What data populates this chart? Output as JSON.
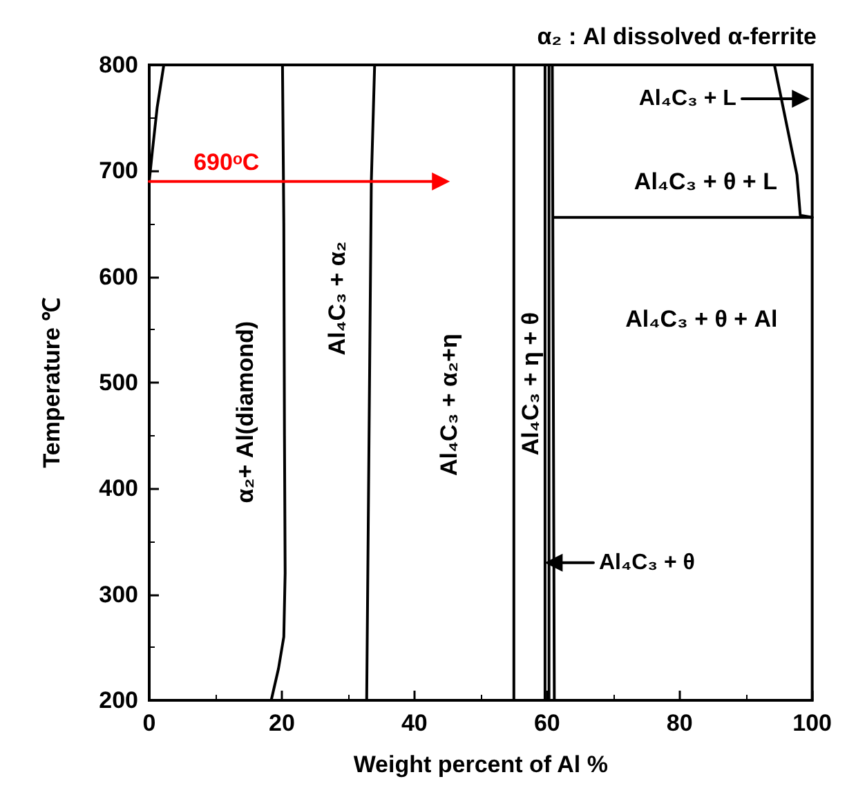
{
  "chart_data": {
    "type": "line",
    "xlabel": "Weight percent of Al %",
    "ylabel": "Temperature ℃",
    "xlim": [
      0,
      100
    ],
    "xticks": [
      0,
      20,
      40,
      60,
      80,
      100
    ],
    "ylim": [
      200,
      800
    ],
    "yticks": [
      200,
      300,
      400,
      500,
      600,
      700,
      800
    ],
    "grid": false,
    "marker": "none",
    "line_style": "solid",
    "series": [
      {
        "color": "#000000",
        "x": [
          0,
          0.5,
          1.2,
          2.2
        ],
        "values": [
          690,
          720,
          760,
          800
        ]
      },
      {
        "color": "#000000",
        "x": [
          18.4,
          19.5,
          20.3,
          20.5,
          20.4,
          20.3,
          20.1
        ],
        "values": [
          200,
          230,
          260,
          320,
          450,
          650,
          800
        ]
      },
      {
        "color": "#000000",
        "x": [
          32.8,
          33.5,
          34.0
        ],
        "values": [
          200,
          690,
          800
        ]
      },
      {
        "color": "#000000",
        "x": [
          55,
          55
        ],
        "values": [
          200,
          800
        ]
      },
      {
        "color": "#000000",
        "x": [
          59.7,
          59.7
        ],
        "values": [
          200,
          800
        ]
      },
      {
        "color": "#000000",
        "x": [
          60.3,
          60.3
        ],
        "values": [
          200,
          800
        ]
      },
      {
        "color": "#000000",
        "x": [
          61.1,
          60.8
        ],
        "values": [
          200,
          800
        ]
      },
      {
        "color": "#000000",
        "x": [
          61,
          100
        ],
        "values": [
          656,
          656
        ]
      },
      {
        "color": "#000000",
        "x": [
          94.3,
          97.7,
          98.2,
          100
        ],
        "values": [
          800,
          696,
          658,
          656
        ]
      },
      {
        "color": "#ff0000",
        "marker": "triangle",
        "x": [
          0,
          44
        ],
        "values": [
          690,
          690
        ]
      },
      {
        "name": "Al₄C₃ + L",
        "color": "#000000",
        "marker": "triangle",
        "x": [
          89.4,
          98.3
        ],
        "values": [
          768,
          768
        ]
      },
      {
        "name": "Al₄C₃ + θ",
        "color": "#000000",
        "marker": "triangle",
        "x": [
          67,
          61.0
        ],
        "values": [
          330,
          330
        ]
      }
    ],
    "annotations": [
      "α₂ : Al dissolved α-ferrite",
      "α₂+ Al(diamond)",
      "Al₄C₃ + α₂",
      "Al₄C₃ + α₂+η",
      "Al₄C₃ + η + θ",
      "Al₄C₃ + θ + L",
      "Al₄C₃ + θ + Al",
      "690ᵒC"
    ]
  }
}
